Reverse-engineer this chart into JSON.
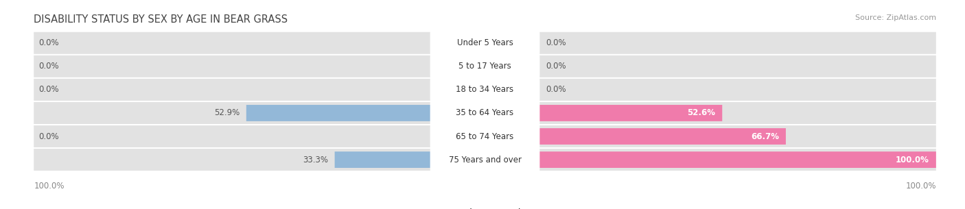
{
  "title": "DISABILITY STATUS BY SEX BY AGE IN BEAR GRASS",
  "source": "Source: ZipAtlas.com",
  "categories": [
    "Under 5 Years",
    "5 to 17 Years",
    "18 to 34 Years",
    "35 to 64 Years",
    "65 to 74 Years",
    "75 Years and over"
  ],
  "male_values": [
    0.0,
    0.0,
    0.0,
    52.9,
    0.0,
    33.3
  ],
  "female_values": [
    0.0,
    0.0,
    0.0,
    52.6,
    66.7,
    100.0
  ],
  "male_color": "#93b8d8",
  "female_color": "#f07bab",
  "row_bg_color": "#e2e2e2",
  "label_bg_color": "#ffffff",
  "bg_color": "#ffffff",
  "axis_max": 100.0,
  "title_fontsize": 10.5,
  "source_fontsize": 8,
  "cat_fontsize": 8.5,
  "value_fontsize": 8.5
}
